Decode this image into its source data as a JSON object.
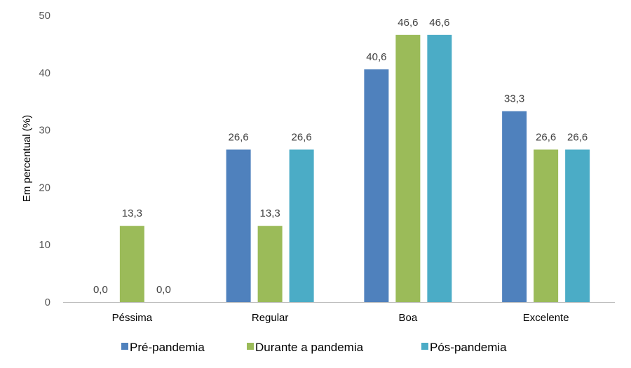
{
  "chart_data": {
    "type": "bar",
    "title": "",
    "xlabel": "",
    "ylabel": "Em percentual (%)",
    "ylim": [
      0,
      50
    ],
    "yticks": [
      0,
      10,
      20,
      30,
      40,
      50
    ],
    "grid": false,
    "legend_position": "bottom",
    "categories": [
      "Péssima",
      "Regular",
      "Boa",
      "Excelente"
    ],
    "series": [
      {
        "name": "Pré-pandemia",
        "color": "#4f81bd",
        "values": [
          0.0,
          26.6,
          40.6,
          33.3
        ],
        "labels": [
          "0,0",
          "26,6",
          "40,6",
          "33,3"
        ]
      },
      {
        "name": "Durante a pandemia",
        "color": "#9bbb59",
        "values": [
          13.3,
          13.3,
          46.6,
          26.6
        ],
        "labels": [
          "13,3",
          "13,3",
          "46,6",
          "26,6"
        ]
      },
      {
        "name": "Pós-pandemia",
        "color": "#4bacc6",
        "values": [
          0.0,
          26.6,
          46.6,
          26.6
        ],
        "labels": [
          "0,0",
          "26,6",
          "46,6",
          "26,6"
        ]
      }
    ]
  }
}
